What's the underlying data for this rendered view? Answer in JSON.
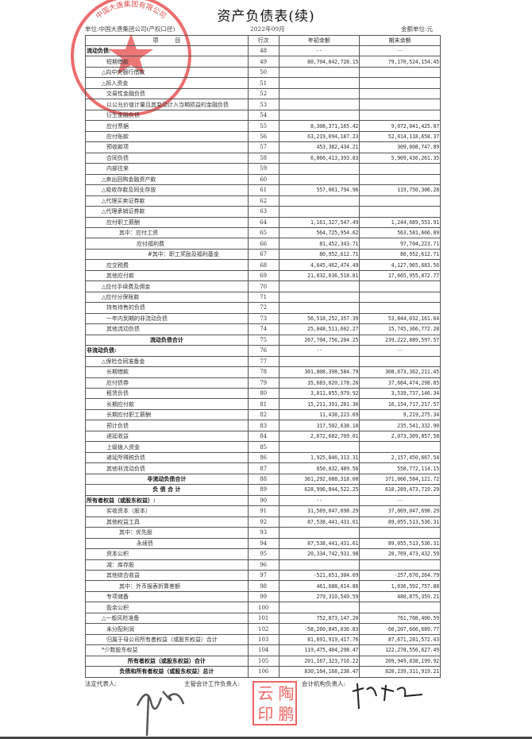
{
  "title": "资产负债表(续)",
  "unit_company": "单位:中国大唐集团公司(产权口径)",
  "period": "2022年09月",
  "currency_unit": "金额单位:元",
  "headers": {
    "item": "项　　　目",
    "line": "行次",
    "begin": "年初余额",
    "end": "期末余额"
  },
  "rows": [
    [
      "流动负债:",
      "48",
      "--",
      "--",
      0,
      "b"
    ],
    [
      "短期借款",
      "49",
      "80,704,842,728.15",
      "79,170,524,154.45",
      2,
      ""
    ],
    [
      "△向中央银行借款",
      "50",
      "",
      "",
      1,
      ""
    ],
    [
      "△拆入资金",
      "51",
      "",
      "",
      1,
      ""
    ],
    [
      "交易性金融负债",
      "52",
      "",
      "",
      2,
      ""
    ],
    [
      "以公允价值计量且其变动计入当期损益的金融负债",
      "53",
      "",
      "",
      2,
      ""
    ],
    [
      "衍生金融负债",
      "54",
      "",
      "",
      2,
      ""
    ],
    [
      "应付票据",
      "55",
      "8,308,371,165.42",
      "9,072,041,425.07",
      2,
      ""
    ],
    [
      "应付账款",
      "56",
      "63,219,094,187.23",
      "52,014,118,658.37",
      2,
      ""
    ],
    [
      "预收款项",
      "57",
      "453,382,434.21",
      "309,008,747.89",
      2,
      ""
    ],
    [
      "合同负债",
      "58",
      "6,066,413,393.83",
      "5,909,436,261.35",
      2,
      ""
    ],
    [
      "内部往来",
      "59",
      "",
      "",
      2,
      ""
    ],
    [
      "△卖出回购金融资产款",
      "60",
      "",
      "",
      1,
      ""
    ],
    [
      "△吸收存款及同业存放",
      "61",
      "557,061,794.96",
      "119,750,306.28",
      1,
      ""
    ],
    [
      "△代理买卖证券款",
      "62",
      "",
      "",
      1,
      ""
    ],
    [
      "△代理承销证券款",
      "63",
      "",
      "",
      1,
      ""
    ],
    [
      "应付职工薪酬",
      "64",
      "1,161,327,547.49",
      "1,244,689,553.91",
      2,
      ""
    ],
    [
      "其中：应付工资",
      "65",
      "564,725,954.62",
      "563,581,666.89",
      3,
      ""
    ],
    [
      "应付福利费",
      "66",
      "81,452,343.71",
      "97,704,223.71",
      4,
      ""
    ],
    [
      "#其中：职工奖励及福利基金",
      "67",
      "80,952,612.71",
      "80,952,612.71",
      5,
      ""
    ],
    [
      "应交税费",
      "68",
      "4,645,462,474.49",
      "4,127,965,683.56",
      2,
      ""
    ],
    [
      "其他应付款",
      "69",
      "21,032,036,518.81",
      "17,665,955,872.77",
      2,
      ""
    ],
    [
      "△应付手续费及佣金",
      "70",
      "",
      "",
      1,
      ""
    ],
    [
      "△应付分保账款",
      "71",
      "",
      "",
      1,
      ""
    ],
    [
      "持有待售的负债",
      "72",
      "",
      "",
      2,
      ""
    ],
    [
      "一年内到期的非流动负债",
      "73",
      "56,518,252,357.39",
      "53,844,032,161.64",
      2,
      ""
    ],
    [
      "其他流动负债",
      "74",
      "25,048,511,602.27",
      "15,745,366,772.28",
      2,
      ""
    ],
    [
      "流动负债合计",
      "75",
      "267,704,756,204.25",
      "239,222,889,597.57",
      0,
      "bc"
    ],
    [
      "非流动负债:",
      "76",
      "--",
      "--",
      0,
      "b"
    ],
    [
      "△保险合同准备金",
      "77",
      "",
      "",
      1,
      ""
    ],
    [
      "长期借款",
      "78",
      "301,808,398,584.79",
      "308,673,362,211.45",
      2,
      ""
    ],
    [
      "应付债券",
      "79",
      "35,683,020,178.26",
      "37,664,474,298.85",
      2,
      ""
    ],
    [
      "租赁负债",
      "80",
      "3,011,055,979.92",
      "3,539,737,146.34",
      2,
      ""
    ],
    [
      "长期应付款",
      "81",
      "15,211,391,201.36",
      "16,154,717,217.57",
      2,
      ""
    ],
    [
      "长期应付职工薪酬",
      "82",
      "11,438,223.69",
      "9,219,275.34",
      2,
      ""
    ],
    [
      "预计负债",
      "83",
      "317,502,638.10",
      "235,541,332.90",
      2,
      ""
    ],
    [
      "递延收益",
      "84",
      "2,672,602,709.01",
      "2,073,309,857.58",
      2,
      ""
    ],
    [
      "上级拨入资金",
      "85",
      "",
      "",
      2,
      ""
    ],
    [
      "递延所得税负债",
      "86",
      "1,925,846,313.31",
      "2,157,450,667.54",
      2,
      ""
    ],
    [
      "其他非流动负债",
      "87",
      "650,832,489.56",
      "558,772,114.15",
      2,
      ""
    ],
    [
      "非流动负债合计",
      "88",
      "361,292,088,318.00",
      "371,066,584,121.72",
      0,
      "bc"
    ],
    [
      "负 债 合 计",
      "89",
      "628,996,844,522.25",
      "610,289,473,719.29",
      0,
      "bc"
    ],
    [
      "所有者权益（或股东权益）:",
      "90",
      "--",
      "--",
      0,
      "b"
    ],
    [
      "实收资本（股本）",
      "91",
      "31,569,047,698.29",
      "37,069,047,698.29",
      2,
      ""
    ],
    [
      "其他权益工具",
      "92",
      "87,538,441,431.61",
      "89,055,513,536.31",
      2,
      ""
    ],
    [
      "其中：优先股",
      "93",
      "",
      "",
      3,
      ""
    ],
    [
      "永续债",
      "94",
      "87,538,441,431.61",
      "89,055,513,536.31",
      4,
      ""
    ],
    [
      "资本公积",
      "95",
      "20,334,742,931.98",
      "20,769,473,432.59",
      2,
      ""
    ],
    [
      "减：库存股",
      "96",
      "",
      "",
      2,
      ""
    ],
    [
      "其他综合收益",
      "97",
      "-521,651,304.09",
      "-257,670,264.79",
      2,
      ""
    ],
    [
      "其中：外币报表折算差额",
      "98",
      "461,688,614.86",
      "1,036,592,757.88",
      3,
      ""
    ],
    [
      "专项储备",
      "99",
      "279,310,549.59",
      "480,875,359.21",
      2,
      ""
    ],
    [
      "盈余公积",
      "100",
      "",
      "",
      2,
      ""
    ],
    [
      "△一般风险准备",
      "101",
      "752,873,147.20",
      "761,708,400.59",
      1,
      ""
    ],
    [
      "未分配利润",
      "102",
      "-58,260,845,036.83",
      "-60,207,666,689.77",
      2,
      ""
    ],
    [
      "归属于母公司所有者权益（或股东权益）合计",
      "103",
      "81,691,919,417.76",
      "87,671,281,572.43",
      2,
      ""
    ],
    [
      "*少数股东权益",
      "104",
      "119,475,404,298.47",
      "122,278,556,627.49",
      1,
      ""
    ],
    [
      "所有者权益（或股东权益）合计",
      "105",
      "201,167,323,716.22",
      "209,949,838,199.92",
      0,
      "bc"
    ],
    [
      "负债和所有者权益（或股东权益）总计",
      "106",
      "830,164,168,238.47",
      "820,239,311,919.21",
      0,
      "bc"
    ]
  ],
  "footer": {
    "legal_rep": "法定代表人:",
    "chief_accountant": "主管会计工作负责人:",
    "accounting_head": "会计机构负责人:"
  },
  "seal_text": "陶云鹏印",
  "company_stamp_text": "中国大唐集团有限公司",
  "signatures": [
    "邹磊",
    "郑燕敏"
  ],
  "colors": {
    "stamp": "#e63c3c"
  }
}
